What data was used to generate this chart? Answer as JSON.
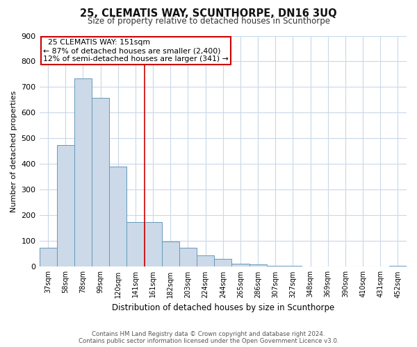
{
  "title1": "25, CLEMATIS WAY, SCUNTHORPE, DN16 3UQ",
  "title2": "Size of property relative to detached houses in Scunthorpe",
  "xlabel": "Distribution of detached houses by size in Scunthorpe",
  "ylabel": "Number of detached properties",
  "bar_labels": [
    "37sqm",
    "58sqm",
    "78sqm",
    "99sqm",
    "120sqm",
    "141sqm",
    "161sqm",
    "182sqm",
    "203sqm",
    "224sqm",
    "244sqm",
    "265sqm",
    "286sqm",
    "307sqm",
    "327sqm",
    "348sqm",
    "369sqm",
    "390sqm",
    "410sqm",
    "431sqm",
    "452sqm"
  ],
  "bar_values": [
    75,
    475,
    735,
    658,
    390,
    175,
    175,
    98,
    75,
    45,
    30,
    12,
    8,
    4,
    3,
    2,
    1,
    0,
    0,
    0,
    5
  ],
  "bar_color": "#ccd9e8",
  "bar_edge_color": "#6699bb",
  "annotation_title": "25 CLEMATIS WAY: 151sqm",
  "annotation_line1": "← 87% of detached houses are smaller (2,400)",
  "annotation_line2": "12% of semi-detached houses are larger (341) →",
  "annotation_box_color": "#cc0000",
  "vline_color": "#cc0000",
  "ylim": [
    0,
    900
  ],
  "yticks": [
    0,
    100,
    200,
    300,
    400,
    500,
    600,
    700,
    800,
    900
  ],
  "footer1": "Contains HM Land Registry data © Crown copyright and database right 2024.",
  "footer2": "Contains public sector information licensed under the Open Government Licence v3.0.",
  "background_color": "#ffffff",
  "grid_color": "#c8d8e8"
}
